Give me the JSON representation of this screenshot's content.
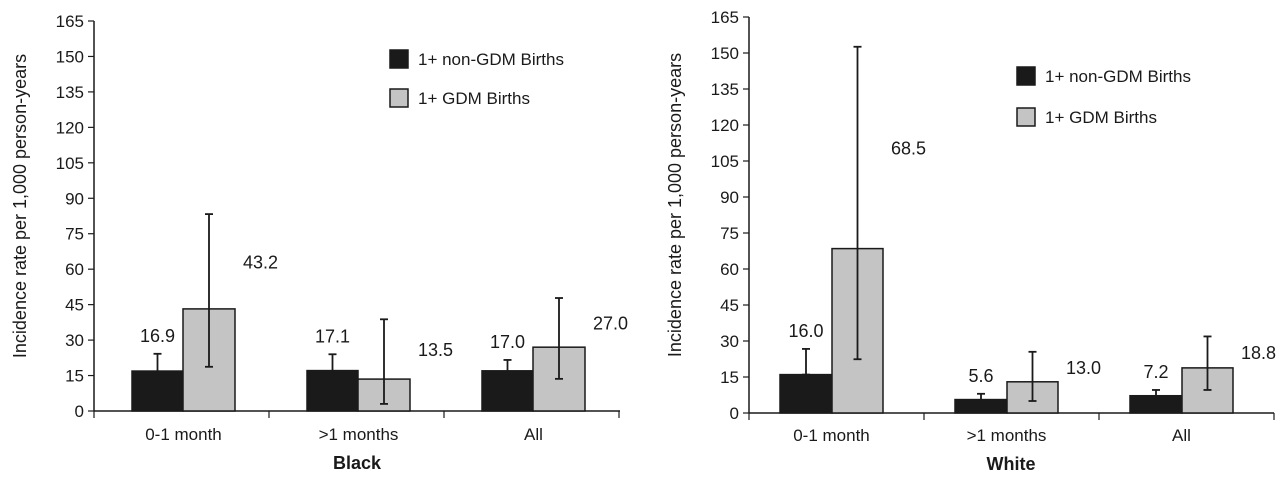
{
  "chart_data": [
    {
      "type": "bar",
      "title": "",
      "xlabel": "Black",
      "ylabel": "Incidence rate per 1,000 person-years",
      "ylim": [
        0,
        165
      ],
      "yticks": [
        0,
        15,
        30,
        45,
        60,
        75,
        90,
        105,
        120,
        135,
        150,
        165
      ],
      "categories": [
        "0-1 month",
        ">1 months",
        "All"
      ],
      "series": [
        {
          "name": "1+ non-GDM Births",
          "color": "#1a1a1a",
          "values": [
            16.9,
            17.1,
            17.0
          ],
          "labels": [
            "16.9",
            "17.1",
            "17.0"
          ],
          "err_low": [
            10.5,
            10.7,
            12.4
          ],
          "err_high": [
            24.2,
            24.0,
            21.6
          ]
        },
        {
          "name": "1+ GDM Births",
          "color": "#c4c4c4",
          "values": [
            43.2,
            13.5,
            27.0
          ],
          "labels": [
            "43.2",
            "13.5",
            "27.0"
          ],
          "err_low": [
            18.7,
            3.0,
            13.6
          ],
          "err_high": [
            83.3,
            38.8,
            47.8
          ]
        }
      ],
      "legend_position": "top-right",
      "grid": false
    },
    {
      "type": "bar",
      "title": "",
      "xlabel": "White",
      "ylabel": "Incidence rate per 1,000 person-years",
      "ylim": [
        0,
        165
      ],
      "yticks": [
        0,
        15,
        30,
        45,
        60,
        75,
        90,
        105,
        120,
        135,
        150,
        165
      ],
      "categories": [
        "0-1 month",
        ">1 months",
        "All"
      ],
      "series": [
        {
          "name": "1+ non-GDM Births",
          "color": "#1a1a1a",
          "values": [
            16.0,
            5.6,
            7.2
          ],
          "labels": [
            "16.0",
            "5.6",
            "7.2"
          ],
          "err_low": [
            16.0,
            3.5,
            5.3
          ],
          "err_high": [
            26.7,
            8.0,
            9.6
          ]
        },
        {
          "name": "1+ GDM Births",
          "color": "#c4c4c4",
          "values": [
            68.5,
            13.0,
            18.8
          ],
          "labels": [
            "68.5",
            "13.0",
            "18.8"
          ],
          "err_low": [
            22.4,
            5.0,
            9.6
          ],
          "err_high": [
            152.6,
            25.5,
            31.9
          ]
        }
      ],
      "legend_position": "top-right",
      "grid": false
    }
  ]
}
